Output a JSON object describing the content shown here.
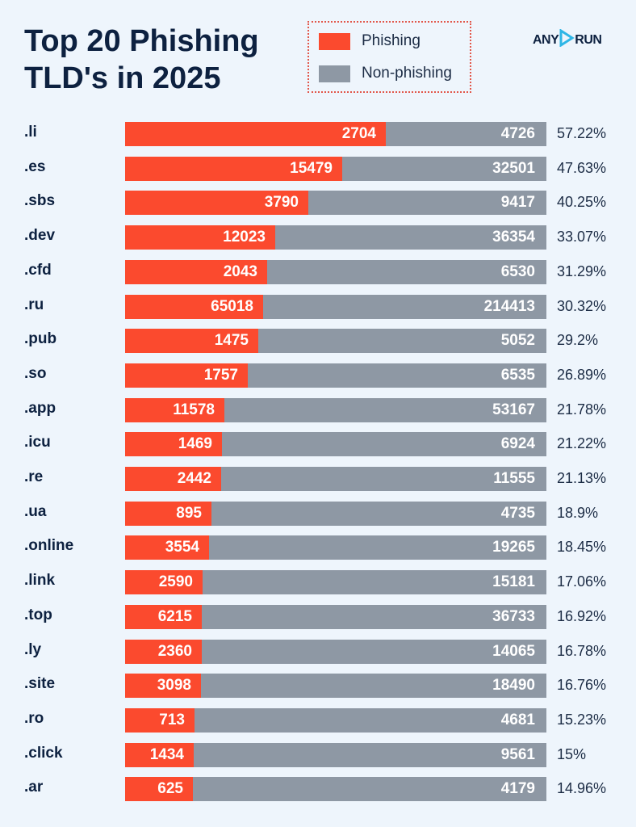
{
  "chart_data": {
    "type": "bar",
    "orientation": "horizontal",
    "stacked": true,
    "title": "Top 20 Phishing TLD's in 2025",
    "legend": {
      "position": "top",
      "entries": [
        "Phishing",
        "Non-phishing"
      ]
    },
    "colors": {
      "Phishing": "#fb4a2e",
      "Non-phishing": "#8e98a4"
    },
    "categories": [
      ".li",
      ".es",
      ".sbs",
      ".dev",
      ".cfd",
      ".ru",
      ".pub",
      ".so",
      ".app",
      ".icu",
      ".re",
      ".ua",
      ".online",
      ".link",
      ".top",
      ".ly",
      ".site",
      ".ro",
      ".click",
      ".ar"
    ],
    "series": [
      {
        "name": "Phishing",
        "values": [
          2704,
          15479,
          3790,
          12023,
          2043,
          65018,
          1475,
          1757,
          11578,
          1469,
          2442,
          895,
          3554,
          2590,
          6215,
          2360,
          3098,
          713,
          1434,
          625
        ]
      },
      {
        "name": "Non-phishing",
        "values": [
          4726,
          32501,
          9417,
          36354,
          6530,
          214413,
          5052,
          6535,
          53167,
          6924,
          11555,
          4735,
          19265,
          15181,
          36733,
          14065,
          18490,
          4681,
          9561,
          4179
        ]
      }
    ],
    "percentages": [
      "57.22%",
      "47.63%",
      "40.25%",
      "33.07%",
      "31.29%",
      "30.32%",
      "29.2%",
      "26.89%",
      "21.78%",
      "21.22%",
      "21.13%",
      "18.9%",
      "18.45%",
      "17.06%",
      "16.92%",
      "16.78%",
      "16.76%",
      "15.23%",
      "15%",
      "14.96%"
    ],
    "grid": false
  },
  "header": {
    "title_line1": "Top 20 Phishing",
    "title_line2": "TLD's in 2025",
    "logo_left": "ANY",
    "logo_right": "RUN"
  }
}
